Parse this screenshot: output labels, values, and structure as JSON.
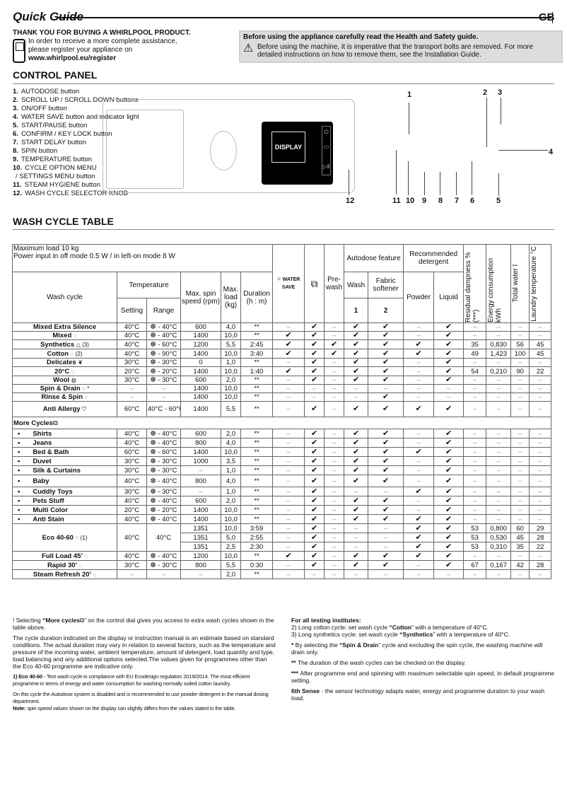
{
  "header": {
    "title": "Quick Guide",
    "lang": "GB"
  },
  "intro": {
    "thanks": "THANK YOU FOR BUYING A WHIRLPOOL PRODUCT.",
    "line1": "In order to receive a more complete assistance,",
    "line2": "please register your appliance on",
    "url": "www.whirlpool.eu/register"
  },
  "warning": {
    "title": "Before using the appliance carefully read the Health and Safety guide.",
    "text": "Before using the machine, it is imperative that the transport bolts are removed. For more detailed instructions on how to remove them, see the Installation Guide."
  },
  "control_panel": {
    "title": "CONTROL PANEL",
    "display": "DISPLAY",
    "items": [
      {
        "n": "1.",
        "t": "AUTODOSE button"
      },
      {
        "n": "2.",
        "t": "SCROLL UP / SCROLL DOWN buttons"
      },
      {
        "n": "3.",
        "t": "ON/OFF button"
      },
      {
        "n": "4.",
        "t": "WATER SAVE button and indicator light"
      },
      {
        "n": "5.",
        "t": "START/PAUSE button"
      },
      {
        "n": "6.",
        "t": "CONFIRM / KEY LOCK button"
      },
      {
        "n": "7.",
        "t": "START DELAY button"
      },
      {
        "n": "8.",
        "t": "SPIN button"
      },
      {
        "n": "9.",
        "t": "TEMPERATURE button"
      },
      {
        "n": "10.",
        "t": "CYCLE OPTION MENU"
      },
      {
        "n": "",
        "t": " / SETTINGS MENU button"
      },
      {
        "n": "11.",
        "t": "STEAM HYGIENE button"
      },
      {
        "n": "12.",
        "t": "WASH CYCLE SELECTOR KNOB"
      }
    ],
    "callouts": [
      "1",
      "2",
      "3",
      "4",
      "5",
      "6",
      "7",
      "8",
      "9",
      "10",
      "11",
      "12"
    ]
  },
  "table": {
    "title": "WASH CYCLE TABLE",
    "info1": "Maximum load 10 kg",
    "info2": "Power input in off mode 0.5 W / in left-on mode 8 W",
    "h": {
      "wash_cycle": "Wash cycle",
      "temperature": "Temperature",
      "setting": "Setting",
      "range": "Range",
      "spin": "Max. spin speed (rpm)",
      "load": "Max. load (kg)",
      "duration": "Duration (h : m)",
      "water": "WATER",
      "save": "SAVE",
      "prewash": "Pre-wash",
      "autodose": "Autodose feature",
      "wash": "Wash",
      "fabric": "Fabric softener",
      "n1": "1",
      "n2": "2",
      "recommended": "Recommended detergent",
      "powder": "Powder",
      "liquid": "Liquid",
      "damp": "Residual dampness % (***)",
      "energy": "Energy consumption kWh",
      "water_total": "Total water l",
      "laundry_temp": "Laundry temperature °C"
    },
    "more_cycles": "More Cycles",
    "rows": [
      [
        "Mixed Extra Silence",
        "",
        "40°C",
        "❆ - 40°C",
        "600",
        "4,0",
        "**",
        "–",
        "✔",
        "–",
        "✔",
        "✔",
        "–",
        "✔",
        "–",
        "–",
        "–",
        "–"
      ],
      [
        "Mixed",
        "◌",
        "40°C",
        "❆ - 40°C",
        "1400",
        "10,0",
        "**",
        "✔",
        "✔",
        "–",
        "✔",
        "✔",
        "–",
        "✔",
        "–",
        "–",
        "–",
        "–"
      ],
      [
        "Synthetics",
        "△ (3)",
        "40°C",
        "❆ - 60°C",
        "1200",
        "5,5",
        "2:45",
        "✔",
        "✔",
        "✔",
        "✔",
        "✔",
        "✔",
        "✔",
        "35",
        "0,830",
        "56",
        "45"
      ],
      [
        "Cotton",
        "◌ (2)",
        "40°C",
        "❆ - 90°C",
        "1400",
        "10,0",
        "3:40",
        "✔",
        "✔",
        "✔",
        "✔",
        "✔",
        "✔",
        "✔",
        "49",
        "1,423",
        "100",
        "45"
      ],
      [
        "Delicates",
        "❦",
        "30°C",
        "❆ - 30°C",
        "0",
        "1,0",
        "**",
        "–",
        "✔",
        "–",
        "✔",
        "✔",
        "–",
        "✔",
        "–",
        "–",
        "–",
        "–"
      ],
      [
        "20°C",
        "◌",
        "20°C",
        "❆ - 20°C",
        "1400",
        "10,0",
        "1:40",
        "✔",
        "✔",
        "–",
        "✔",
        "✔",
        "–",
        "✔",
        "54",
        "0,210",
        "90",
        "22"
      ],
      [
        "Wool",
        "◍",
        "30°C",
        "❆ - 30°C",
        "600",
        "2,0",
        "**",
        "–",
        "✔",
        "–",
        "✔",
        "✔",
        "–",
        "✔",
        "–",
        "–",
        "–",
        "–"
      ],
      [
        "Spin & Drain",
        "◌ *",
        "–",
        "–",
        "1400",
        "10,0",
        "**",
        "–",
        "–",
        "–",
        "–",
        "–",
        "–",
        "–",
        "–",
        "–",
        "–",
        "–"
      ],
      [
        "Rinse & Spin",
        "◌",
        "–",
        "–",
        "1400",
        "10,0",
        "**",
        "–",
        "–",
        "–",
        "–",
        "✔",
        "–",
        "–",
        "–",
        "–",
        "–",
        "–"
      ],
      [
        "Anti Allergy",
        "⛉",
        "60°C",
        "40°C - 60°C",
        "1400",
        "5,5",
        "**",
        "–",
        "✔",
        "–",
        "✔",
        "✔",
        "✔",
        "✔",
        "–",
        "–",
        "–",
        "–"
      ]
    ],
    "more_rows": [
      [
        "Shirts",
        "40°C",
        "❆ - 40°C",
        "600",
        "2,0",
        "**",
        "–",
        "✔",
        "–",
        "✔",
        "✔",
        "–",
        "✔",
        "–",
        "–",
        "–",
        "–"
      ],
      [
        "Jeans",
        "40°C",
        "❆ - 40°C",
        "800",
        "4,0",
        "**",
        "–",
        "✔",
        "–",
        "✔",
        "✔",
        "–",
        "✔",
        "–",
        "–",
        "–",
        "–"
      ],
      [
        "Bed & Bath",
        "60°C",
        "❆ - 60°C",
        "1400",
        "10,0",
        "**",
        "–",
        "✔",
        "–",
        "✔",
        "✔",
        "✔",
        "✔",
        "–",
        "–",
        "–",
        "–"
      ],
      [
        "Duvet",
        "30°C",
        "❆ - 30°C",
        "1000",
        "3,5",
        "**",
        "–",
        "✔",
        "–",
        "✔",
        "✔",
        "–",
        "✔",
        "–",
        "–",
        "–",
        "–"
      ],
      [
        "Silk & Curtains",
        "30°C",
        "❆ - 30°C",
        "–",
        "1,0",
        "**",
        "–",
        "✔",
        "–",
        "✔",
        "✔",
        "–",
        "✔",
        "–",
        "–",
        "–",
        "–"
      ],
      [
        "Baby",
        "40°C",
        "❆ - 40°C",
        "800",
        "4,0",
        "**",
        "–",
        "✔",
        "–",
        "✔",
        "✔",
        "–",
        "✔",
        "–",
        "–",
        "–",
        "–"
      ],
      [
        "Cuddly Toys",
        "30°C",
        "❆ - 30°C",
        "–",
        "1,0",
        "**",
        "–",
        "✔",
        "–",
        "–",
        "–",
        "✔",
        "✔",
        "–",
        "–",
        "–",
        "–"
      ],
      [
        "Pets Stuff",
        "40°C",
        "❆ - 40°C",
        "600",
        "2,0",
        "**",
        "–",
        "✔",
        "–",
        "✔",
        "✔",
        "–",
        "✔",
        "–",
        "–",
        "–",
        "–"
      ],
      [
        "Multi Color",
        "20°C",
        "❆ - 20°C",
        "1400",
        "10,0",
        "**",
        "–",
        "✔",
        "–",
        "✔",
        "✔",
        "–",
        "✔",
        "–",
        "–",
        "–",
        "–"
      ],
      [
        "Anti Stain",
        "40°C",
        "❆ - 40°C",
        "1400",
        "10,0",
        "**",
        "–",
        "✔",
        "–",
        "✔",
        "✔",
        "✔",
        "✔",
        "–",
        "–",
        "–",
        "–"
      ]
    ],
    "eco": {
      "name": "Eco 40-60",
      "note": "◌ (1)",
      "setting": "40°C",
      "range": "40°C",
      "sub": [
        [
          "1351",
          "10,0",
          "3:59",
          "–",
          "✔",
          "–",
          "–",
          "–",
          "✔",
          "✔",
          "53",
          "0,800",
          "60",
          "29"
        ],
        [
          "1351",
          "5,0",
          "2:55",
          "–",
          "✔",
          "–",
          "–",
          "–",
          "✔",
          "✔",
          "53",
          "0,530",
          "45",
          "28"
        ],
        [
          "1351",
          "2,5",
          "2:30",
          "–",
          "✔",
          "–",
          "–",
          "–",
          "✔",
          "✔",
          "53",
          "0,310",
          "35",
          "22"
        ]
      ]
    },
    "end_rows": [
      [
        "Full Load 45’",
        "◌",
        "40°C",
        "❆ - 40°C",
        "1200",
        "10,0",
        "**",
        "✔",
        "✔",
        "–",
        "✔",
        "✔",
        "✔",
        "✔",
        "–",
        "–",
        "–",
        "–"
      ],
      [
        "Rapid 30’",
        "◌",
        "30°C",
        "❆ - 30°C",
        "800",
        "5,5",
        "0:30",
        "–",
        "✔",
        "–",
        "✔",
        "✔",
        "–",
        "✔",
        "67",
        "0,167",
        "42",
        "28"
      ],
      [
        "Steam Refresh 20’",
        "◌",
        "–",
        "–",
        "–",
        "2,0",
        "**",
        "–",
        "–",
        "–",
        "–",
        "–",
        "–",
        "–",
        "–",
        "–",
        "–",
        "–"
      ]
    ]
  },
  "notes": {
    "more_a": "! Selecting ",
    "more_b": "“More cycles",
    "more_c": "” on the control dial gives you access to extra wash cycles shown in the table above.",
    "duration": "The cycle duration indicated on the display or instruction manual is an estimate based on standard conditions. The actual duration may vary in relation to several factors, such as the temperature and pressure of the incoming water, ambient temperature, amount of detergent, load quantity and type, load balancing and any additional options selected.The values given for programmes other than the Eco 40-60 programme are indicative only.",
    "eco_a": "1) Eco 40-60",
    "eco_b": " - Test wash cycle in compliance with EU Ecodesign regulation 2019/2014. The most efficient programme in terms of energy and water consumption for washing normally soiled cotton laundry.",
    "autodose": "On this cycle the Autodose system is disabled and is recommended to use powder detergent in the manual dosing department.",
    "note_a": "Note:",
    "note_b": " spin speed values shown on the display can slightly differs from the values stated in the table.",
    "testing": "For all testing institutes:",
    "t2a": "2)  Long cotton cycle: set wash cycle ",
    "t2b": "“Cotton",
    "t2c": "” with a temperature of 40°C.",
    "t3a": "3)  Long synthetics cycle: set wash cycle ",
    "t3b": "“Synthetics",
    "t3c": "” with a temperature of 40°C.",
    "s1a": "* ",
    "s1b": "By selecting the ",
    "s1c": "“Spin & Drain",
    "s1d": "” cycle and excluding the spin cycle, the washing machine will drain only.",
    "s2a": "** ",
    "s2b": "The duration of the wash cycles can be checked on the display.",
    "s3a": "*** ",
    "s3b": "After programme end and spinning with maximum selectable spin speed, in default programme setting.",
    "sense_a": "6th Sense",
    "sense_b": " - the sensor technology adapts water, energy and programme duration to your wash load."
  }
}
